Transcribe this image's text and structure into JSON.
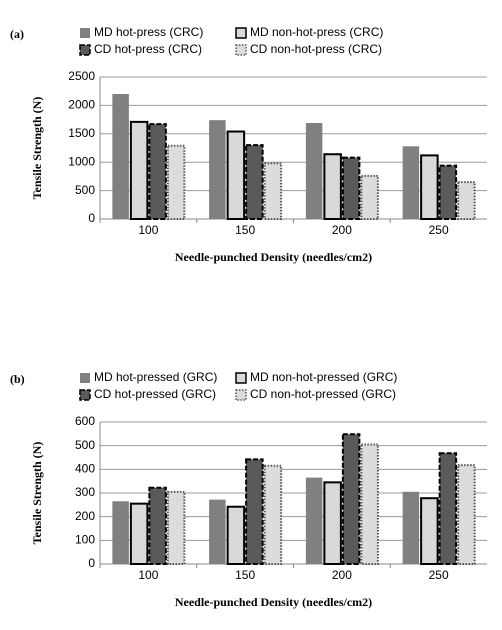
{
  "chart_data": [
    {
      "type": "bar",
      "label": "(a)",
      "x_label": "Needle-punched Density (needles/cm2)",
      "y_label": "Tensile Strength (N)",
      "categories": [
        "100",
        "150",
        "200",
        "250"
      ],
      "series": [
        {
          "name": "MD hot-press (CRC)",
          "color": "#808080",
          "stroke": "none",
          "stroke_style": "solid",
          "values": [
            2200,
            1740,
            1690,
            1280
          ]
        },
        {
          "name": "MD non-hot-press (CRC)",
          "color": "#d9d9d9",
          "stroke": "#000000",
          "stroke_style": "solid",
          "values": [
            1710,
            1540,
            1140,
            1120
          ]
        },
        {
          "name": "CD hot-press (CRC)",
          "color": "#5a5a5a",
          "stroke": "#000000",
          "stroke_style": "dashed",
          "values": [
            1670,
            1300,
            1080,
            940
          ]
        },
        {
          "name": "CD non-hot-press (CRC)",
          "color": "#dcdcdc",
          "stroke": "#555555",
          "stroke_style": "dotted",
          "values": [
            1290,
            980,
            760,
            650
          ]
        }
      ],
      "ylim": [
        0,
        2500
      ],
      "yticks": [
        0,
        500,
        1000,
        1500,
        2000,
        2500
      ],
      "grid": true
    },
    {
      "type": "bar",
      "label": "(b)",
      "x_label": "Needle-punched Density (needles/cm2)",
      "y_label": "Tensile  Strength (N)",
      "categories": [
        "100",
        "150",
        "200",
        "250"
      ],
      "series": [
        {
          "name": "MD hot-pressed (GRC)",
          "color": "#808080",
          "stroke": "none",
          "stroke_style": "solid",
          "values": [
            265,
            272,
            365,
            305
          ]
        },
        {
          "name": "MD non-hot-pressed (GRC)",
          "color": "#d9d9d9",
          "stroke": "#000000",
          "stroke_style": "solid",
          "values": [
            255,
            242,
            345,
            278
          ]
        },
        {
          "name": "CD hot-pressed (GRC)",
          "color": "#5a5a5a",
          "stroke": "#000000",
          "stroke_style": "dashed",
          "values": [
            322,
            442,
            548,
            468
          ]
        },
        {
          "name": "CD non-hot-pressed (GRC)",
          "color": "#dcdcdc",
          "stroke": "#555555",
          "stroke_style": "dotted",
          "values": [
            305,
            415,
            505,
            418
          ]
        }
      ],
      "ylim": [
        0,
        600
      ],
      "yticks": [
        0,
        100,
        200,
        300,
        400,
        500,
        600
      ],
      "grid": true
    }
  ]
}
